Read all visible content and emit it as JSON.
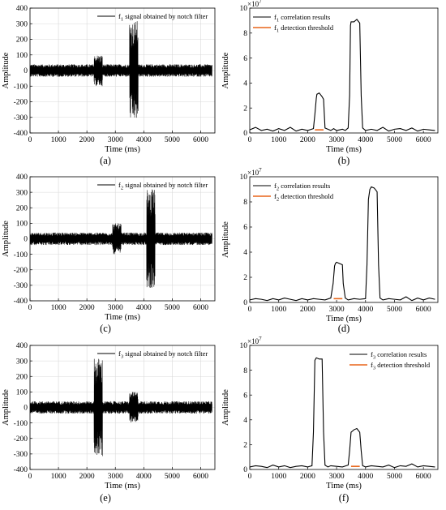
{
  "chart_data": [
    {
      "id": "a",
      "type": "line",
      "panel_label": "(a)",
      "xlabel": "Time (ms)",
      "ylabel": "Amplitude",
      "xlim": [
        0,
        6500
      ],
      "ylim": [
        -400,
        400
      ],
      "xticks": [
        0,
        1000,
        2000,
        3000,
        4000,
        5000,
        6000
      ],
      "yticks": [
        -400,
        -300,
        -200,
        -100,
        0,
        100,
        200,
        300,
        400
      ],
      "grid": true,
      "legend_position": "top-right",
      "series": [
        {
          "name_parts": [
            "f",
            "1",
            " signal obtained by notch filter"
          ],
          "kind": "noise_signal",
          "color": "#000000",
          "noise_amplitude": 40,
          "bursts": [
            {
              "x_start": 2250,
              "x_end": 2550,
              "amplitude": 100
            },
            {
              "x_start": 3500,
              "x_end": 3800,
              "amplitude": 320
            }
          ]
        }
      ]
    },
    {
      "id": "b",
      "type": "line",
      "panel_label": "(b)",
      "xlabel": "Time (ms)",
      "ylabel": "Amplitude",
      "y_exponent": "7",
      "xlim": [
        0,
        6500
      ],
      "ylim": [
        0,
        10
      ],
      "xticks": [
        0,
        1000,
        2000,
        3000,
        4000,
        5000,
        6000
      ],
      "yticks": [
        0,
        2,
        4,
        6,
        8,
        10
      ],
      "grid": false,
      "legend_position": "top-left",
      "series": [
        {
          "name_parts": [
            "f",
            "1",
            " correlation results"
          ],
          "color": "#000000",
          "x": [
            0,
            200,
            400,
            600,
            800,
            1000,
            1200,
            1400,
            1600,
            1800,
            2000,
            2200,
            2250,
            2300,
            2320,
            2400,
            2500,
            2550,
            2600,
            2700,
            2800,
            2900,
            3000,
            3100,
            3200,
            3300,
            3400,
            3450,
            3480,
            3500,
            3600,
            3700,
            3800,
            3850,
            3900,
            4000,
            4200,
            4400,
            4600,
            4800,
            5000,
            5200,
            5400,
            5600,
            5800,
            6000,
            6200,
            6400
          ],
          "y": [
            0.25,
            0.45,
            0.2,
            0.3,
            0.15,
            0.35,
            0.2,
            0.45,
            0.15,
            0.3,
            0.2,
            0.35,
            1.5,
            2.8,
            3.1,
            3.2,
            2.9,
            2.7,
            0.4,
            0.3,
            0.2,
            0.35,
            0.2,
            0.25,
            0.3,
            0.2,
            0.4,
            3.0,
            8.6,
            8.9,
            8.9,
            9.1,
            8.8,
            3.0,
            0.4,
            0.2,
            0.3,
            0.2,
            0.45,
            0.15,
            0.3,
            0.35,
            0.2,
            0.4,
            0.15,
            0.3,
            0.25,
            0.2
          ]
        },
        {
          "name_parts": [
            "f",
            "1",
            " detection threshold"
          ],
          "color": "#e8651a",
          "x": [
            2250,
            2550
          ],
          "y": [
            0.25,
            0.25
          ]
        }
      ]
    },
    {
      "id": "c",
      "type": "line",
      "panel_label": "(c)",
      "xlabel": "Time (ms)",
      "ylabel": "Amplitude",
      "xlim": [
        0,
        6500
      ],
      "ylim": [
        -400,
        400
      ],
      "xticks": [
        0,
        1000,
        2000,
        3000,
        4000,
        5000,
        6000
      ],
      "yticks": [
        -400,
        -300,
        -200,
        -100,
        0,
        100,
        200,
        300,
        400
      ],
      "grid": true,
      "legend_position": "top-right",
      "series": [
        {
          "name_parts": [
            "f",
            "2",
            " signal obtained by notch filter"
          ],
          "kind": "noise_signal",
          "color": "#000000",
          "noise_amplitude": 40,
          "bursts": [
            {
              "x_start": 2900,
              "x_end": 3200,
              "amplitude": 100
            },
            {
              "x_start": 4100,
              "x_end": 4400,
              "amplitude": 320
            }
          ]
        }
      ]
    },
    {
      "id": "d",
      "type": "line",
      "panel_label": "(d)",
      "xlabel": "Time (ms)",
      "ylabel": "Amplitude",
      "y_exponent": "7",
      "xlim": [
        0,
        6500
      ],
      "ylim": [
        0,
        10
      ],
      "xticks": [
        0,
        1000,
        2000,
        3000,
        4000,
        5000,
        6000
      ],
      "yticks": [
        0,
        2,
        4,
        6,
        8,
        10
      ],
      "grid": false,
      "legend_position": "top-left",
      "series": [
        {
          "name_parts": [
            "f",
            "2",
            " correlation results"
          ],
          "color": "#000000",
          "x": [
            0,
            200,
            400,
            600,
            800,
            1000,
            1200,
            1400,
            1600,
            1800,
            2000,
            2200,
            2400,
            2600,
            2800,
            2880,
            2930,
            2960,
            3000,
            3100,
            3200,
            3230,
            3300,
            3400,
            3600,
            3800,
            4000,
            4050,
            4100,
            4150,
            4200,
            4300,
            4400,
            4450,
            4500,
            4600,
            4800,
            5000,
            5200,
            5400,
            5600,
            5800,
            6000,
            6200,
            6400
          ],
          "y": [
            0.2,
            0.3,
            0.25,
            0.15,
            0.3,
            0.2,
            0.35,
            0.25,
            0.15,
            0.3,
            0.2,
            0.3,
            0.25,
            0.2,
            0.35,
            1.5,
            2.9,
            3.1,
            3.2,
            3.1,
            3.0,
            1.5,
            0.35,
            0.2,
            0.3,
            0.25,
            0.3,
            3.0,
            8.2,
            9.0,
            9.2,
            9.1,
            8.8,
            3.0,
            0.35,
            0.2,
            0.3,
            0.25,
            0.2,
            0.45,
            0.15,
            0.35,
            0.2,
            0.35,
            0.25
          ]
        },
        {
          "name_parts": [
            "f",
            "2",
            " detection threshold"
          ],
          "color": "#e8651a",
          "x": [
            2900,
            3200
          ],
          "y": [
            0.3,
            0.3
          ]
        }
      ]
    },
    {
      "id": "e",
      "type": "line",
      "panel_label": "(e)",
      "xlabel": "Time (ms)",
      "ylabel": "Amplitude",
      "xlim": [
        0,
        6500
      ],
      "ylim": [
        -400,
        400
      ],
      "xticks": [
        0,
        1000,
        2000,
        3000,
        4000,
        5000,
        6000
      ],
      "yticks": [
        -400,
        -300,
        -200,
        -100,
        0,
        100,
        200,
        300,
        400
      ],
      "grid": true,
      "legend_position": "top-right",
      "series": [
        {
          "name_parts": [
            "f",
            "3",
            " signal obtained by notch filter"
          ],
          "kind": "noise_signal",
          "color": "#000000",
          "noise_amplitude": 40,
          "bursts": [
            {
              "x_start": 2250,
              "x_end": 2550,
              "amplitude": 320
            },
            {
              "x_start": 3500,
              "x_end": 3800,
              "amplitude": 100
            }
          ]
        }
      ]
    },
    {
      "id": "f",
      "type": "line",
      "panel_label": "(f)",
      "xlabel": "Time (ms)",
      "ylabel": "Amplitude",
      "y_exponent": "7",
      "xlim": [
        0,
        6500
      ],
      "ylim": [
        0,
        10
      ],
      "xticks": [
        0,
        1000,
        2000,
        3000,
        4000,
        5000,
        6000
      ],
      "yticks": [
        0,
        2,
        4,
        6,
        8,
        10
      ],
      "grid": false,
      "legend_position": "top-right",
      "series": [
        {
          "name_parts": [
            "f",
            "3",
            " correlation results"
          ],
          "color": "#000000",
          "x": [
            0,
            200,
            400,
            600,
            800,
            1000,
            1200,
            1400,
            1600,
            1800,
            2000,
            2150,
            2200,
            2250,
            2300,
            2400,
            2500,
            2550,
            2600,
            2700,
            2800,
            3000,
            3200,
            3400,
            3450,
            3500,
            3600,
            3700,
            3800,
            3850,
            3900,
            4000,
            4200,
            4400,
            4600,
            4800,
            5000,
            5200,
            5400,
            5600,
            5800,
            6000,
            6200,
            6400
          ],
          "y": [
            0.2,
            0.3,
            0.25,
            0.15,
            0.35,
            0.2,
            0.3,
            0.15,
            0.25,
            0.3,
            0.2,
            0.3,
            3.0,
            8.8,
            9.0,
            8.9,
            8.9,
            3.0,
            0.35,
            0.2,
            0.3,
            0.25,
            0.2,
            0.35,
            1.5,
            3.0,
            3.2,
            3.3,
            3.0,
            1.5,
            0.3,
            0.2,
            0.3,
            0.25,
            0.2,
            0.35,
            0.15,
            0.3,
            0.25,
            0.45,
            0.2,
            0.3,
            0.25,
            0.2
          ]
        },
        {
          "name_parts": [
            "f",
            "3",
            " detection threshold"
          ],
          "color": "#e8651a",
          "x": [
            3500,
            3800
          ],
          "y": [
            0.25,
            0.25
          ]
        }
      ]
    }
  ]
}
